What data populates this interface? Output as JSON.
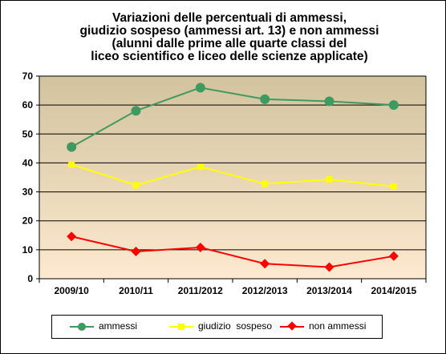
{
  "chart_data": {
    "type": "line",
    "title_lines": [
      "Variazioni delle percentuali di ammessi,",
      "giudizio sospeso (ammessi art. 13) e non ammessi",
      "(alunni dalle prime alle quarte classi del",
      "liceo scientifico e liceo delle scienze applicate)"
    ],
    "categories": [
      "2009/10",
      "2010/11",
      "2011/2012",
      "2012/2013",
      "2013/2014",
      "2014/2015"
    ],
    "ylim": [
      0,
      70
    ],
    "yticks": [
      0,
      10,
      20,
      30,
      40,
      50,
      60,
      70
    ],
    "grid": true,
    "legend_position": "bottom",
    "series": [
      {
        "name": "ammessi",
        "values": [
          45.5,
          58,
          66,
          62,
          61.3,
          60
        ],
        "color": "#3f9a5f",
        "marker": "circle"
      },
      {
        "name": "giudizio  sospeso",
        "values": [
          39.5,
          32.3,
          38.7,
          32.8,
          34.3,
          31.9
        ],
        "color": "#ffff00",
        "marker": "square"
      },
      {
        "name": "non ammessi",
        "values": [
          14.6,
          9.4,
          10.8,
          5.2,
          4.0,
          7.8
        ],
        "color": "#ff0000",
        "marker": "diamond"
      }
    ],
    "background_gradient": [
      "#d2c39e",
      "#fde9cf"
    ]
  }
}
